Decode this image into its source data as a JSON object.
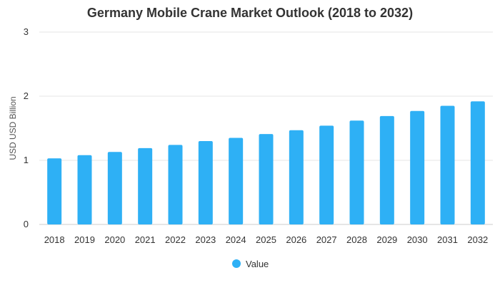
{
  "chart_data": {
    "type": "bar",
    "title": "Germany Mobile Crane Market Outlook (2018 to 2032)",
    "xlabel": "",
    "ylabel": "USD USD Billion",
    "categories": [
      "2018",
      "2019",
      "2020",
      "2021",
      "2022",
      "2023",
      "2024",
      "2025",
      "2026",
      "2027",
      "2028",
      "2029",
      "2030",
      "2031",
      "2032"
    ],
    "series": [
      {
        "name": "Value",
        "color": "#2EB0F5",
        "values": [
          1.03,
          1.08,
          1.13,
          1.19,
          1.24,
          1.3,
          1.35,
          1.41,
          1.47,
          1.54,
          1.62,
          1.69,
          1.77,
          1.85,
          1.92
        ]
      }
    ],
    "ylim": [
      0,
      3
    ],
    "yticks": [
      0,
      1,
      2,
      3
    ],
    "grid": true,
    "legend": "bottom-center"
  }
}
